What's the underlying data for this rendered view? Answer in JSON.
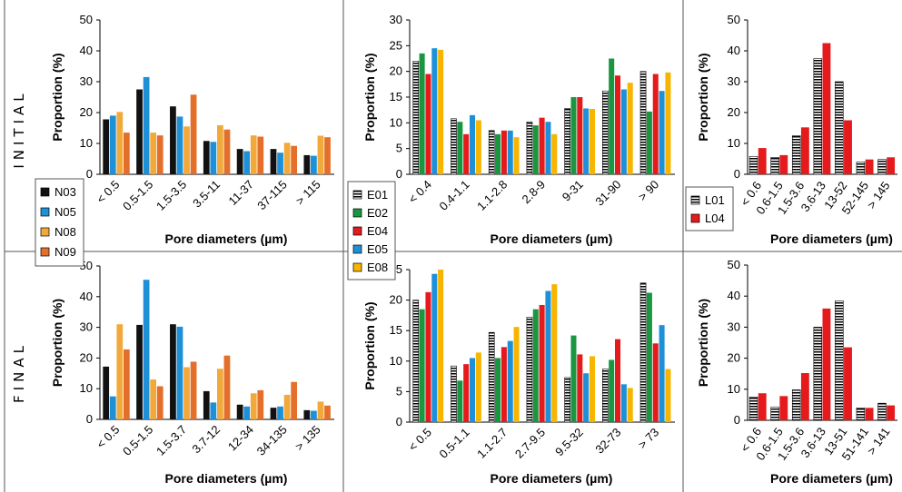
{
  "row_labels": {
    "initial": "INITIAL",
    "final": "FINAL"
  },
  "colors": {
    "N03": "#111111",
    "N05": "#1E90D8",
    "N08": "#F2A93B",
    "N09": "#E36F2A",
    "E01": "#FFFFFF",
    "E02": "#1A9641",
    "E04": "#E41A1C",
    "E05": "#1E90D8",
    "E08": "#F7B500",
    "L01": "#FFFFFF",
    "L04": "#E41A1C"
  },
  "legends": {
    "N": [
      "N03",
      "N05",
      "N08",
      "N09"
    ],
    "E": [
      "E01",
      "E02",
      "E04",
      "E05",
      "E08"
    ],
    "L": [
      "L01",
      "L04"
    ]
  },
  "chart_data": [
    {
      "id": "N-initial",
      "type": "bar",
      "ylabel": "Proportion (%)",
      "xlabel": "Pore diameters (µm)",
      "ylim": [
        0,
        50
      ],
      "yticks": [
        0,
        10,
        20,
        30,
        40,
        50
      ],
      "categories": [
        "< 0.5",
        "0.5-1.5",
        "1.5-3.5",
        "3.5-11",
        "11-37",
        "37-115",
        "> 115"
      ],
      "series": [
        {
          "name": "N03",
          "values": [
            17.8,
            27.5,
            22,
            10.8,
            8.2,
            8.2,
            6.2
          ]
        },
        {
          "name": "N05",
          "values": [
            19,
            31.5,
            18.7,
            10.5,
            7.5,
            7,
            6
          ]
        },
        {
          "name": "N08",
          "values": [
            20.2,
            13.5,
            15.5,
            15.9,
            12.6,
            10.2,
            12.5
          ]
        },
        {
          "name": "N09",
          "values": [
            13.5,
            12.6,
            25.8,
            14.5,
            12.2,
            9.2,
            12
          ]
        }
      ]
    },
    {
      "id": "E-initial",
      "type": "bar",
      "ylabel": "Proportion (%)",
      "xlabel": "Pore diameters (µm)",
      "ylim": [
        0,
        30
      ],
      "yticks": [
        0,
        5,
        10,
        15,
        20,
        25,
        30
      ],
      "categories": [
        "< 0.4",
        "0.4-1.1",
        "1.1-2.8",
        "2.8-9",
        "9-31",
        "31-90",
        "> 90"
      ],
      "series": [
        {
          "name": "E01",
          "values": [
            22,
            10.8,
            8.5,
            10.2,
            12.8,
            16.2,
            20
          ]
        },
        {
          "name": "E02",
          "values": [
            23.5,
            10.2,
            7.8,
            9.5,
            15,
            22.5,
            12.2
          ]
        },
        {
          "name": "E04",
          "values": [
            19.5,
            7.8,
            8.5,
            11,
            15,
            19.2,
            19.5
          ]
        },
        {
          "name": "E05",
          "values": [
            24.5,
            11.5,
            8.5,
            10.2,
            12.8,
            16.5,
            16.2
          ]
        },
        {
          "name": "E08",
          "values": [
            24.2,
            10.5,
            7.2,
            7.8,
            12.7,
            17.8,
            19.8
          ]
        }
      ]
    },
    {
      "id": "L-initial",
      "type": "bar",
      "ylabel": "Proportion (%)",
      "xlabel": "Pore diameters (µm)",
      "ylim": [
        0,
        50
      ],
      "yticks": [
        0,
        10,
        20,
        30,
        40,
        50
      ],
      "categories": [
        "< 0.6",
        "0.6-1.5",
        "1.5-3.6",
        "3.6-13",
        "13-52",
        "52-145",
        "> 145"
      ],
      "series": [
        {
          "name": "L01",
          "values": [
            5.8,
            5.5,
            12.5,
            37.5,
            30,
            4,
            4.8
          ]
        },
        {
          "name": "L04",
          "values": [
            8.5,
            6.2,
            15.2,
            42.5,
            17.5,
            4.8,
            5.5
          ]
        }
      ]
    },
    {
      "id": "N-final",
      "type": "bar",
      "ylabel": "Proportion (%)",
      "xlabel": "Pore diameters (µm)",
      "ylim": [
        0,
        50
      ],
      "yticks": [
        0,
        10,
        20,
        30,
        40,
        50
      ],
      "categories": [
        "< 0.5",
        "0.5-1.5",
        "1.5-3.7",
        "3.7-12",
        "12-34",
        "34-135",
        "> 135"
      ],
      "series": [
        {
          "name": "N03",
          "values": [
            17.2,
            30.8,
            31,
            9.2,
            4.8,
            3.8,
            3
          ]
        },
        {
          "name": "N05",
          "values": [
            7.5,
            45.5,
            30.2,
            5.5,
            4.2,
            4.2,
            2.8
          ]
        },
        {
          "name": "N08",
          "values": [
            31,
            13,
            17,
            16.5,
            8.5,
            8,
            5.8
          ]
        },
        {
          "name": "N09",
          "values": [
            22.8,
            10.8,
            18.8,
            20.8,
            9.5,
            12.2,
            4.5
          ]
        }
      ]
    },
    {
      "id": "E-final",
      "type": "bar",
      "ylabel": "Proportion (%)",
      "xlabel": "Pore diameters (µm)",
      "ylim": [
        0,
        25
      ],
      "yticks": [
        0,
        5,
        10,
        15,
        20,
        25
      ],
      "categories": [
        "< 0.5",
        "0.5-1.1",
        "1.1-2.7",
        "2.7-9.5",
        "9.5-32",
        "32-73",
        "> 73"
      ],
      "series": [
        {
          "name": "E01",
          "values": [
            20,
            9.2,
            14.7,
            17.2,
            7.3,
            8.7,
            22.8
          ]
        },
        {
          "name": "E02",
          "values": [
            18.5,
            6.8,
            10.5,
            18.5,
            14.2,
            10.2,
            21.2
          ]
        },
        {
          "name": "E04",
          "values": [
            21.3,
            9.5,
            12.3,
            19.2,
            11.1,
            13.6,
            12.9
          ]
        },
        {
          "name": "E05",
          "values": [
            24.3,
            10.5,
            13.3,
            21.5,
            8,
            6.2,
            15.9
          ]
        },
        {
          "name": "E08",
          "values": [
            25,
            11.4,
            15.6,
            22.6,
            10.8,
            5.6,
            8.7
          ]
        }
      ]
    },
    {
      "id": "L-final",
      "type": "bar",
      "ylabel": "Proportion (%)",
      "xlabel": "Pore diameters (µm)",
      "ylim": [
        0,
        50
      ],
      "yticks": [
        0,
        10,
        20,
        30,
        40,
        50
      ],
      "categories": [
        "< 0.6",
        "0.6-1.5",
        "1.5-3.6",
        "3.6-13",
        "13-51",
        "51-141",
        "> 141"
      ],
      "series": [
        {
          "name": "L01",
          "values": [
            7.5,
            4.2,
            9.8,
            30,
            38.5,
            4,
            5.5
          ]
        },
        {
          "name": "L04",
          "values": [
            8.7,
            7.8,
            15.2,
            36,
            23.5,
            4,
            4.8
          ]
        }
      ]
    }
  ]
}
